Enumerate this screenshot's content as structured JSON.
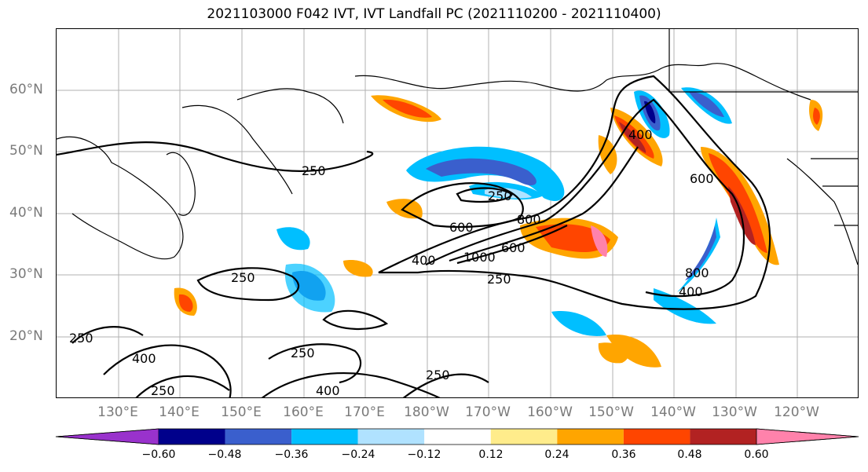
{
  "title": "2021103000 F042 IVT, IVT Landfall PC (2021110200 - 2021110400)",
  "lat_labels": [
    "60°N",
    "50°N",
    "40°N",
    "30°N",
    "20°N"
  ],
  "lon_labels": [
    "130°E",
    "140°E",
    "150°E",
    "160°E",
    "170°E",
    "180°W",
    "170°W",
    "160°W",
    "150°W",
    "140°W",
    "130°W",
    "120°W"
  ],
  "contour_labels": [
    "250",
    "250",
    "250",
    "400",
    "600",
    "1000",
    "600",
    "800",
    "250",
    "400",
    "800",
    "400",
    "600",
    "250",
    "250",
    "400",
    "250",
    "400",
    "250"
  ],
  "colorbar": {
    "ticks": [
      "−0.60",
      "−0.48",
      "−0.36",
      "−0.24",
      "−0.12",
      "0.12",
      "0.24",
      "0.36",
      "0.48",
      "0.60"
    ],
    "colors": [
      "#9932cc",
      "#00008b",
      "#3a5fcd",
      "#00bfff",
      "#b0e2ff",
      "#ffffff",
      "#ffec8b",
      "#ffa500",
      "#ff4500",
      "#b22222",
      "#ff82ab"
    ]
  }
}
